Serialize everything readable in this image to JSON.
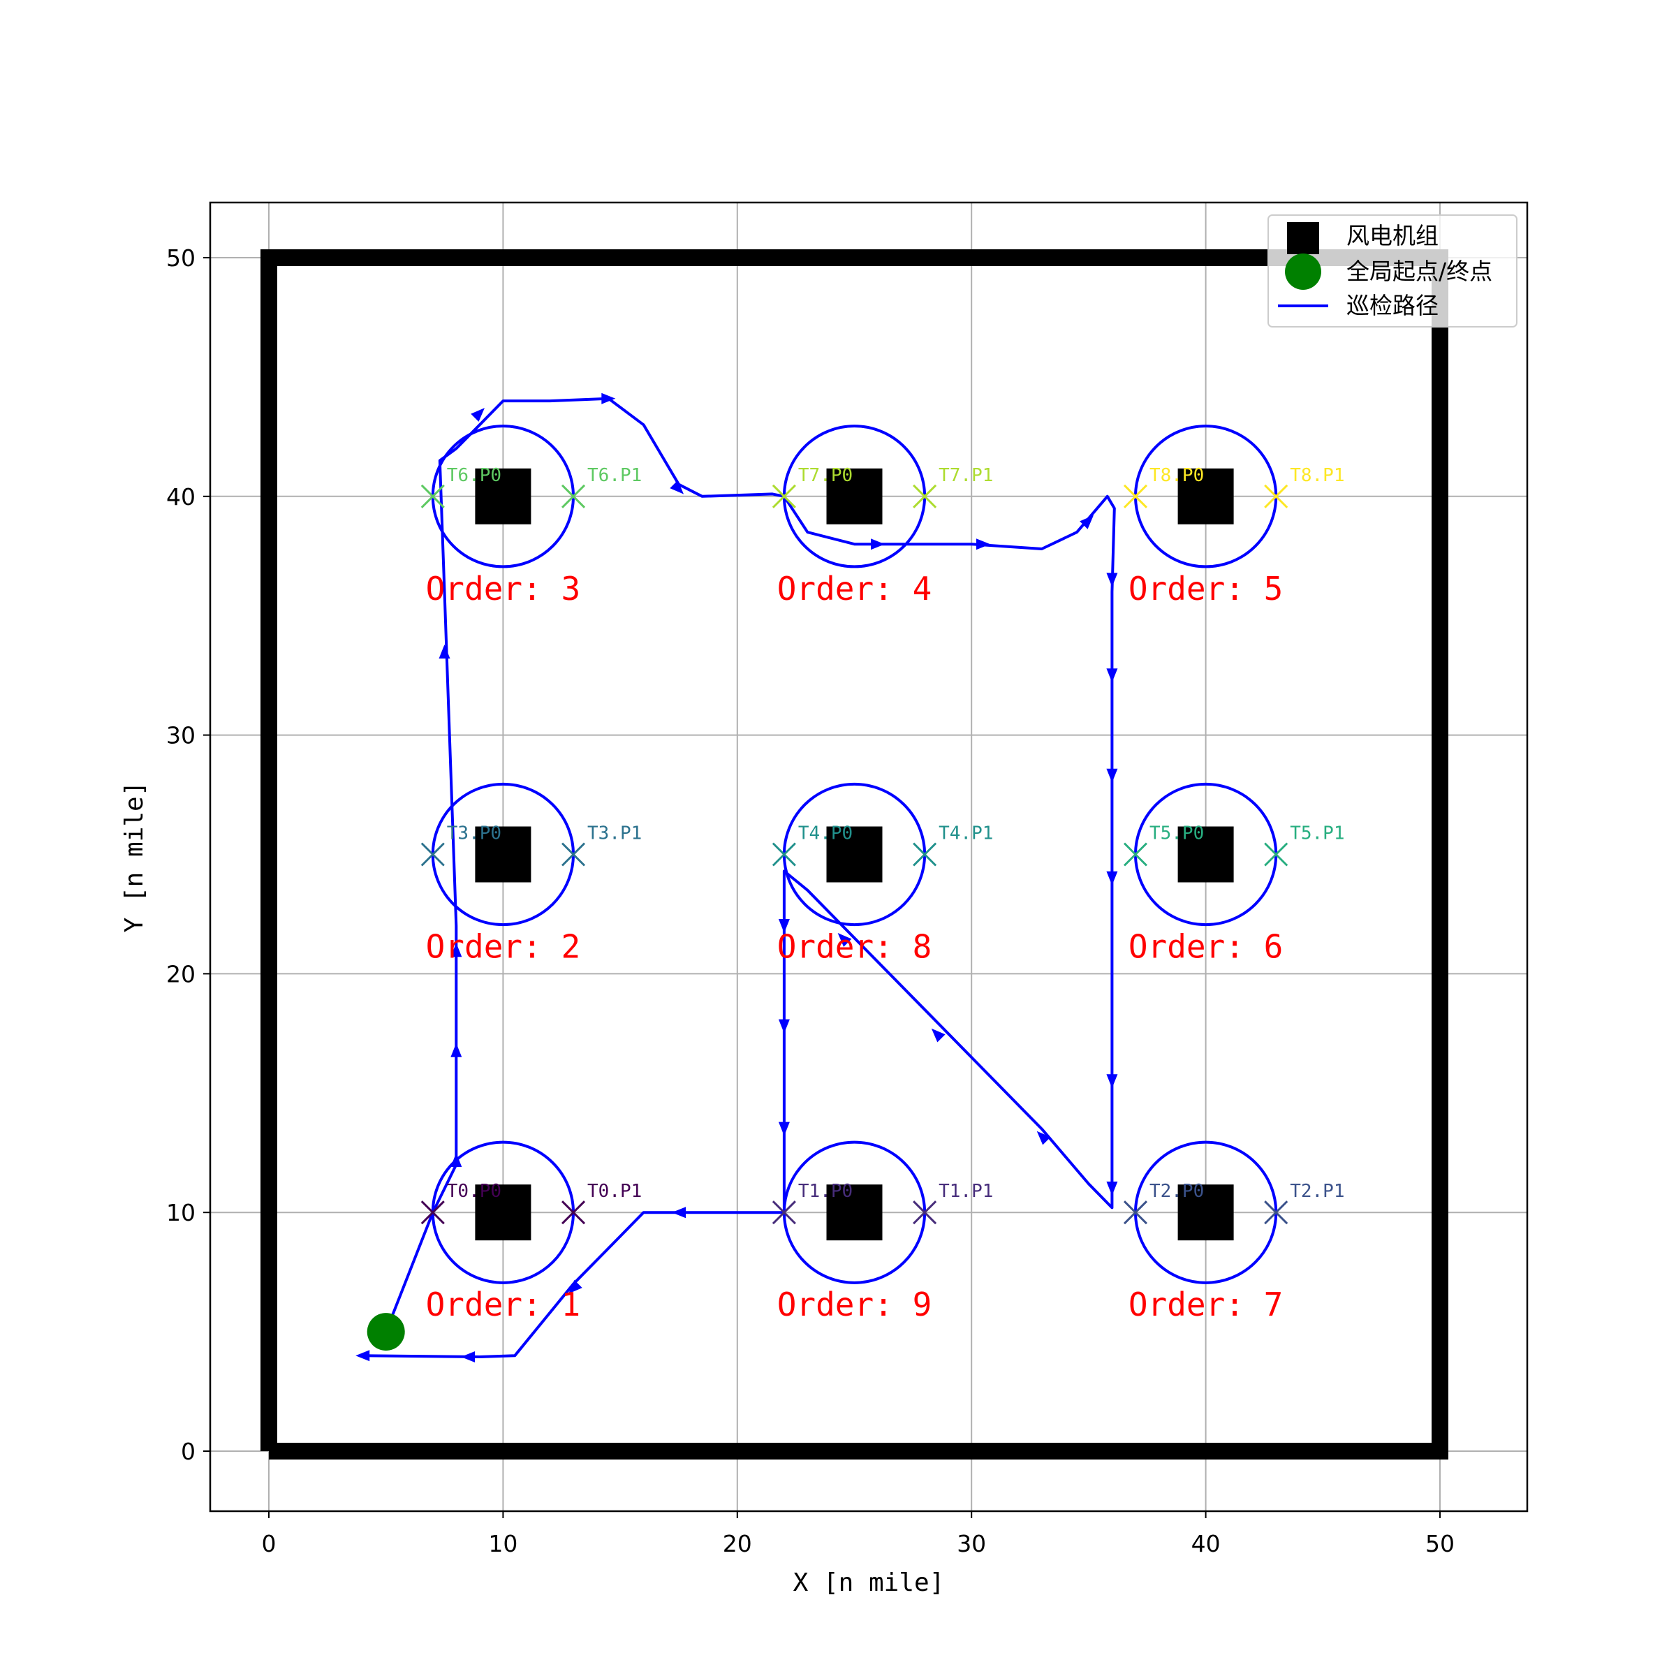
{
  "chart_data": {
    "type": "scatter",
    "xlabel": "X [n mile]",
    "ylabel": "Y [n mile]",
    "xlim": [
      -2.5,
      52.5
    ],
    "ylim": [
      -2.3,
      52.4
    ],
    "xticks": [
      0,
      10,
      20,
      30,
      40,
      50
    ],
    "yticks": [
      0,
      10,
      20,
      30,
      40,
      50
    ],
    "grid": true,
    "legend_position": "top-right",
    "legend": [
      {
        "key": "turbine",
        "label": "风电机组"
      },
      {
        "key": "start",
        "label": "全局起点/终点"
      },
      {
        "key": "path",
        "label": "巡检路径"
      }
    ],
    "boundary": [
      [
        0,
        0
      ],
      [
        50,
        0
      ],
      [
        50,
        50
      ],
      [
        0,
        50
      ]
    ],
    "inspection_radius": 3,
    "start_point": [
      5,
      5
    ],
    "turbines": [
      {
        "id": "T0",
        "x": 10,
        "y": 10,
        "order_label": "Order: 1",
        "color": "#440154",
        "points": [
          {
            "label": "T0.P0",
            "x": 7,
            "y": 10
          },
          {
            "label": "T0.P1",
            "x": 13,
            "y": 10
          }
        ]
      },
      {
        "id": "T1",
        "x": 25,
        "y": 10,
        "order_label": "Order: 9",
        "color": "#472d7b",
        "points": [
          {
            "label": "T1.P0",
            "x": 22,
            "y": 10
          },
          {
            "label": "T1.P1",
            "x": 28,
            "y": 10
          }
        ]
      },
      {
        "id": "T2",
        "x": 40,
        "y": 10,
        "order_label": "Order: 7",
        "color": "#3b528b",
        "points": [
          {
            "label": "T2.P0",
            "x": 37,
            "y": 10
          },
          {
            "label": "T2.P1",
            "x": 43,
            "y": 10
          }
        ]
      },
      {
        "id": "T3",
        "x": 10,
        "y": 25,
        "order_label": "Order: 2",
        "color": "#2c728e",
        "points": [
          {
            "label": "T3.P0",
            "x": 7,
            "y": 25
          },
          {
            "label": "T3.P1",
            "x": 13,
            "y": 25
          }
        ]
      },
      {
        "id": "T4",
        "x": 25,
        "y": 25,
        "order_label": "Order: 8",
        "color": "#21918c",
        "points": [
          {
            "label": "T4.P0",
            "x": 22,
            "y": 25
          },
          {
            "label": "T4.P1",
            "x": 28,
            "y": 25
          }
        ]
      },
      {
        "id": "T5",
        "x": 40,
        "y": 25,
        "order_label": "Order: 6",
        "color": "#28ae80",
        "points": [
          {
            "label": "T5.P0",
            "x": 37,
            "y": 25
          },
          {
            "label": "T5.P1",
            "x": 43,
            "y": 25
          }
        ]
      },
      {
        "id": "T6",
        "x": 10,
        "y": 40,
        "order_label": "Order: 3",
        "color": "#5ec962",
        "points": [
          {
            "label": "T6.P0",
            "x": 7,
            "y": 40
          },
          {
            "label": "T6.P1",
            "x": 13,
            "y": 40
          }
        ]
      },
      {
        "id": "T7",
        "x": 25,
        "y": 40,
        "order_label": "Order: 4",
        "color": "#addc30",
        "points": [
          {
            "label": "T7.P0",
            "x": 22,
            "y": 40
          },
          {
            "label": "T7.P1",
            "x": 28,
            "y": 40
          }
        ]
      },
      {
        "id": "T8",
        "x": 40,
        "y": 40,
        "order_label": "Order: 5",
        "color": "#fde725",
        "points": [
          {
            "label": "T8.P0",
            "x": 37,
            "y": 40
          },
          {
            "label": "T8.P1",
            "x": 43,
            "y": 40
          }
        ]
      }
    ],
    "path": [
      [
        5,
        5
      ],
      [
        7,
        10
      ],
      [
        8,
        12
      ],
      [
        8,
        22
      ],
      [
        7.5,
        36
      ],
      [
        7.3,
        41.5
      ],
      [
        8,
        42
      ],
      [
        9,
        43
      ],
      [
        10,
        44
      ],
      [
        12,
        44
      ],
      [
        14.5,
        44.1
      ],
      [
        16,
        43
      ],
      [
        17.5,
        40.5
      ],
      [
        18.5,
        40
      ],
      [
        21.5,
        40.1
      ],
      [
        22,
        40
      ],
      [
        23,
        38.5
      ],
      [
        25,
        38
      ],
      [
        27,
        38
      ],
      [
        30,
        38
      ],
      [
        33,
        37.8
      ],
      [
        34.5,
        38.5
      ],
      [
        35.8,
        40
      ],
      [
        36.1,
        39.5
      ],
      [
        36,
        36
      ],
      [
        36,
        10.2
      ],
      [
        35,
        11.2
      ],
      [
        33,
        13.5
      ],
      [
        28,
        18.5
      ],
      [
        23,
        23.5
      ],
      [
        22,
        24.3
      ],
      [
        22,
        10
      ],
      [
        21,
        10
      ],
      [
        17,
        10
      ],
      [
        16,
        10
      ],
      [
        15,
        9
      ],
      [
        13,
        7
      ],
      [
        10.5,
        4
      ],
      [
        9,
        3.95
      ],
      [
        4,
        4
      ]
    ],
    "arrows": [
      {
        "x": 8,
        "y": 12.2,
        "dir": [
          0,
          1
        ]
      },
      {
        "x": 8,
        "y": 16.8,
        "dir": [
          0,
          1
        ]
      },
      {
        "x": 8,
        "y": 21,
        "dir": [
          0,
          1
        ]
      },
      {
        "x": 7.5,
        "y": 33.5,
        "dir": [
          0,
          1
        ]
      },
      {
        "x": 9,
        "y": 43.5,
        "dir": [
          1,
          1
        ]
      },
      {
        "x": 14.5,
        "y": 44.1,
        "dir": [
          1,
          0
        ]
      },
      {
        "x": 17.5,
        "y": 40.3,
        "dir": [
          1,
          -1
        ]
      },
      {
        "x": 26,
        "y": 38,
        "dir": [
          1,
          0
        ]
      },
      {
        "x": 30.5,
        "y": 38,
        "dir": [
          1,
          0
        ]
      },
      {
        "x": 35,
        "y": 39,
        "dir": [
          1,
          1
        ]
      },
      {
        "x": 36,
        "y": 36.5,
        "dir": [
          0,
          -1
        ]
      },
      {
        "x": 36,
        "y": 32.5,
        "dir": [
          0,
          -1
        ]
      },
      {
        "x": 36,
        "y": 28.3,
        "dir": [
          0,
          -1
        ]
      },
      {
        "x": 36,
        "y": 24,
        "dir": [
          0,
          -1
        ]
      },
      {
        "x": 36,
        "y": 15.5,
        "dir": [
          0,
          -1
        ]
      },
      {
        "x": 36,
        "y": 11,
        "dir": [
          0,
          -1
        ]
      },
      {
        "x": 33,
        "y": 13.2,
        "dir": [
          -1,
          1
        ]
      },
      {
        "x": 28.5,
        "y": 17.5,
        "dir": [
          -1,
          1
        ]
      },
      {
        "x": 24.5,
        "y": 21.5,
        "dir": [
          -1,
          1
        ]
      },
      {
        "x": 22,
        "y": 22,
        "dir": [
          0,
          -1
        ]
      },
      {
        "x": 22,
        "y": 17.8,
        "dir": [
          0,
          -1
        ]
      },
      {
        "x": 22,
        "y": 13.5,
        "dir": [
          0,
          -1
        ]
      },
      {
        "x": 17.5,
        "y": 10,
        "dir": [
          -1,
          0
        ]
      },
      {
        "x": 13,
        "y": 6.8,
        "dir": [
          -1,
          -1
        ]
      },
      {
        "x": 8.5,
        "y": 3.95,
        "dir": [
          -1,
          0
        ]
      },
      {
        "x": 4,
        "y": 4,
        "dir": [
          -1,
          0
        ]
      }
    ],
    "colors": {
      "path": "#0000ff",
      "circle": "#0000ff",
      "turbine": "#000000",
      "start": "#008000",
      "order_text": "#ff0000",
      "boundary": "#000000",
      "grid": "#b0b0b0"
    }
  }
}
